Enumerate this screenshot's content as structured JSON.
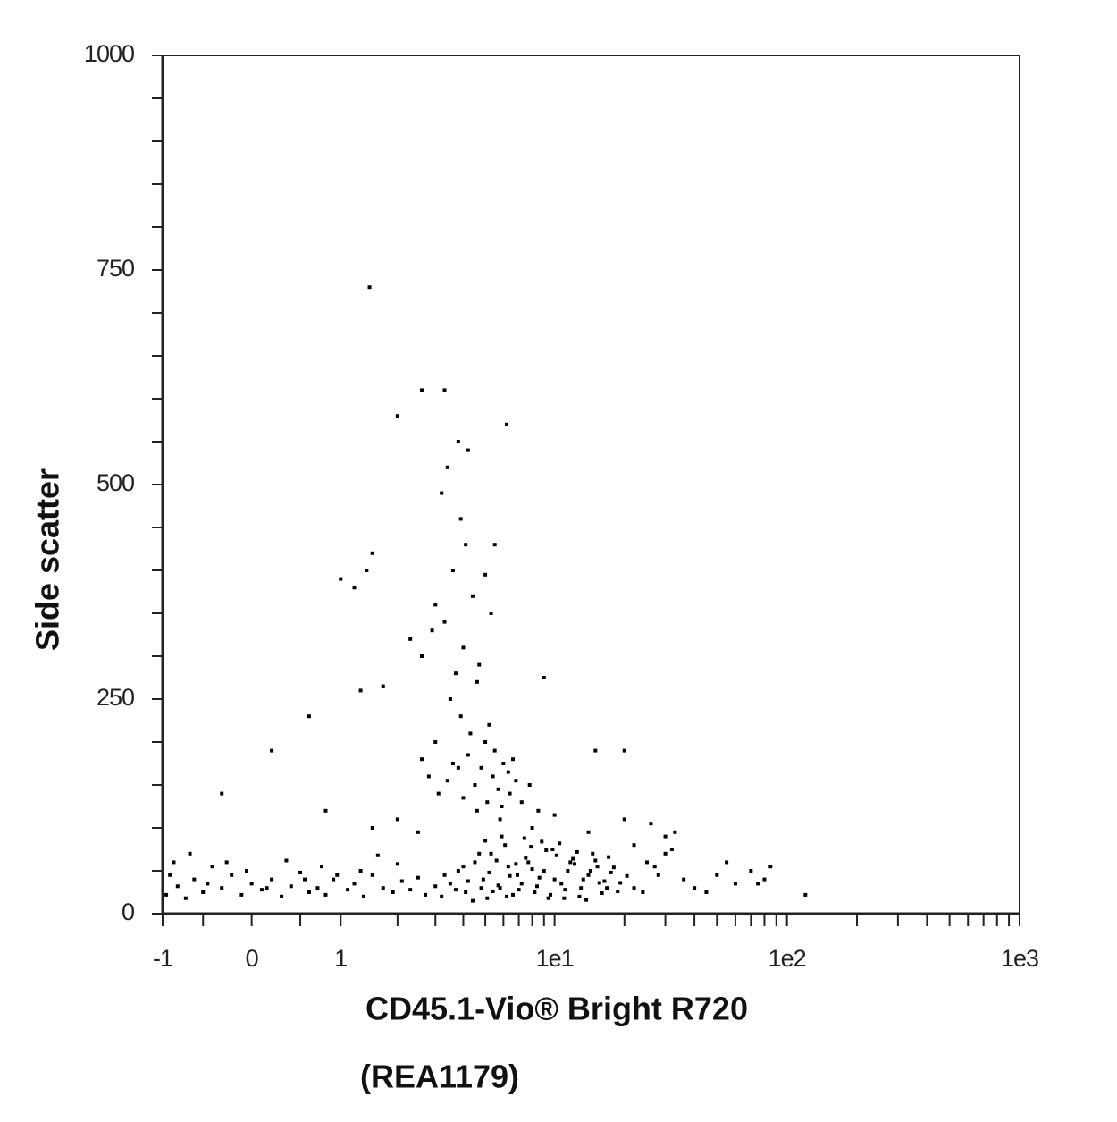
{
  "chart_data": {
    "type": "scatter",
    "x_label": "CD45.1-Vio® Bright R720",
    "x_label_line2": "(REA1179)",
    "y_label": "Side scatter",
    "xscale": "asinh",
    "xlim": [
      -1,
      1000
    ],
    "ylim": [
      0,
      1000
    ],
    "xticks": [
      -1,
      0,
      1,
      {
        "value": 10,
        "label": "1e1"
      },
      {
        "value": 100,
        "label": "1e2"
      },
      {
        "value": 1000,
        "label": "1e3"
      }
    ],
    "xminorticks": [
      -0.5,
      0.5,
      2,
      3,
      4,
      5,
      6,
      7,
      8,
      9,
      20,
      30,
      40,
      50,
      60,
      70,
      80,
      90,
      200,
      300,
      400,
      500,
      600,
      700,
      800,
      900
    ],
    "yticks": [
      0,
      250,
      500,
      750,
      1000
    ],
    "yminorticks": [
      50,
      100,
      150,
      200,
      300,
      350,
      400,
      450,
      550,
      600,
      650,
      700,
      800,
      850,
      900,
      950
    ],
    "color": "#000000",
    "x": [
      3.2,
      3.5,
      3.8,
      4.1,
      4.5,
      4.9,
      5.3,
      5.8,
      6.3,
      6.9,
      7.5,
      8.2,
      9.0,
      9.8,
      10.7,
      11.7,
      12.8,
      14.0,
      15.3,
      16.8,
      3.3,
      3.7,
      4.2,
      4.7,
      5.1,
      5.6,
      6.1,
      6.6,
      7.2,
      7.9,
      8.6,
      9.4,
      10.2,
      11.1,
      12.2,
      13.3,
      14.6,
      16.0,
      17.5,
      19.2,
      4.0,
      4.4,
      4.8,
      5.2,
      5.7,
      6.2,
      6.8,
      7.4,
      8.0,
      8.8,
      9.6,
      10.5,
      11.4,
      12.5,
      13.7,
      15.0,
      16.4,
      18.0,
      20.5,
      22.0,
      5.0,
      5.4,
      5.9,
      6.4,
      7.0,
      7.7,
      8.4,
      9.2,
      10.0,
      11.0,
      12.0,
      13.0,
      14.3,
      15.6,
      17.1,
      18.7,
      3.0,
      2.7,
      2.5,
      2.3,
      2.1,
      1.9,
      1.7,
      1.5,
      1.35,
      1.2,
      1.1,
      0.9,
      0.8,
      0.7,
      0.6,
      0.5,
      0.4,
      0.3,
      0.2,
      0.1,
      0.0,
      -0.1,
      -0.2,
      -0.3,
      -0.4,
      -0.5,
      -0.6,
      -0.7,
      -0.8,
      -0.9,
      -0.95,
      -0.85,
      -0.65,
      -0.45,
      -0.25,
      -0.05,
      0.15,
      0.35,
      0.55,
      0.75,
      0.95,
      1.3,
      1.6,
      2.0,
      4.5,
      4.8,
      5.1,
      5.4,
      5.7,
      6.0,
      6.4,
      4.2,
      4.6,
      5.0,
      5.5,
      5.9,
      6.3,
      6.8,
      3.8,
      4.0,
      4.3,
      5.2,
      5.8,
      6.6,
      3.4,
      3.6,
      3.1,
      2.8,
      2.6,
      7.2,
      7.8,
      8.5,
      3.0,
      3.9,
      3.5,
      3.7,
      4.0,
      3.3,
      4.4,
      3.6,
      4.1,
      3.9,
      3.2,
      4.6,
      2.6,
      2.9,
      3.0,
      4.7,
      5.0,
      5.3,
      3.4,
      4.2,
      6.2,
      5.5,
      2.3,
      2.6,
      1.5,
      1.4,
      1.2,
      1.0,
      3.3,
      3.8,
      2.0,
      1.7,
      1.5,
      2.0,
      2.5,
      8.0,
      10.0,
      14.0,
      20.0,
      26.0,
      30.0,
      0.8,
      25.0,
      28.0,
      32.0,
      36.0,
      40.0,
      50.0,
      60.0,
      70.0,
      80.0,
      120.0,
      22.0,
      24.0,
      27.0,
      30.0,
      33.0,
      45.0,
      55.0,
      75.0,
      85.0,
      -0.3,
      0.2,
      0.6,
      1.3,
      15.0,
      20.0,
      9.0,
      1.45
    ],
    "values": [
      20,
      35,
      50,
      25,
      60,
      40,
      70,
      30,
      55,
      45,
      65,
      25,
      50,
      75,
      35,
      60,
      20,
      45,
      55,
      30,
      45,
      28,
      38,
      70,
      18,
      62,
      80,
      22,
      35,
      78,
      42,
      18,
      68,
      28,
      58,
      40,
      70,
      24,
      48,
      36,
      55,
      15,
      30,
      48,
      33,
      20,
      58,
      88,
      52,
      84,
      22,
      82,
      50,
      72,
      16,
      62,
      38,
      54,
      44,
      30,
      85,
      26,
      90,
      44,
      28,
      60,
      32,
      74,
      40,
      18,
      64,
      30,
      50,
      36,
      66,
      26,
      32,
      22,
      42,
      28,
      38,
      25,
      30,
      45,
      20,
      35,
      28,
      40,
      22,
      30,
      25,
      48,
      32,
      20,
      40,
      28,
      35,
      22,
      45,
      30,
      55,
      25,
      40,
      18,
      32,
      45,
      22,
      60,
      70,
      35,
      60,
      50,
      30,
      62,
      40,
      55,
      45,
      50,
      68,
      58,
      150,
      170,
      130,
      160,
      145,
      175,
      140,
      185,
      120,
      200,
      190,
      125,
      165,
      155,
      170,
      135,
      210,
      220,
      110,
      180,
      155,
      175,
      140,
      160,
      180,
      130,
      150,
      120,
      200,
      230,
      250,
      280,
      310,
      340,
      370,
      400,
      430,
      460,
      490,
      270,
      300,
      330,
      360,
      290,
      395,
      350,
      520,
      540,
      570,
      430,
      320,
      610,
      420,
      400,
      380,
      390,
      610,
      550,
      580,
      265,
      100,
      110,
      95,
      100,
      115,
      95,
      110,
      105,
      90,
      120,
      60,
      45,
      75,
      40,
      30,
      45,
      35,
      50,
      40,
      22,
      80,
      25,
      55,
      70,
      95,
      25,
      60,
      35,
      55,
      140,
      190,
      230,
      260,
      190,
      190,
      275,
      730
    ]
  }
}
